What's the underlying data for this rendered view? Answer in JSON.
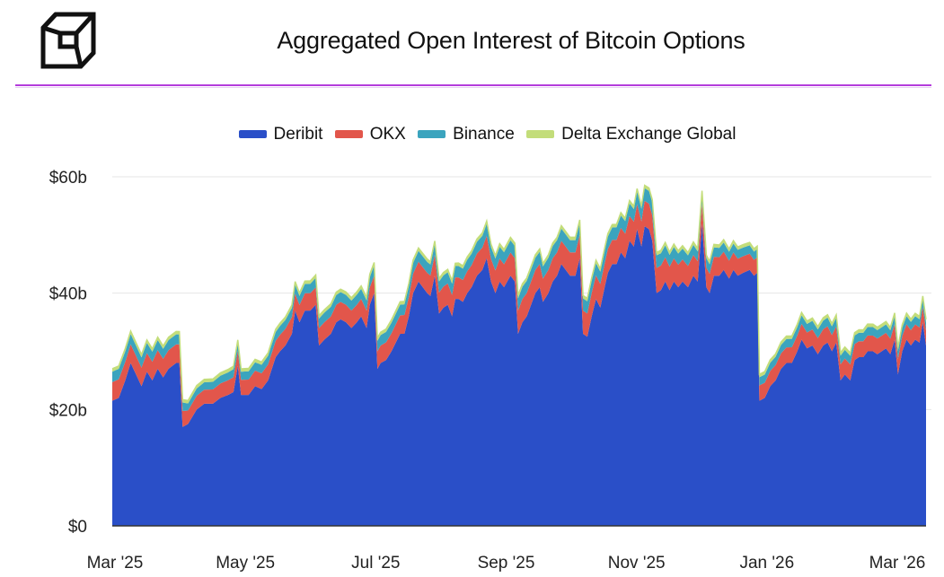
{
  "header": {
    "title": "Aggregated Open Interest of Bitcoin Options"
  },
  "logo": {
    "icon": "cube-logo-icon"
  },
  "chart_data": {
    "type": "area",
    "stacked": true,
    "title": "Aggregated Open Interest of Bitcoin Options",
    "xlabel": "",
    "ylabel": "",
    "ylim": [
      0,
      60
    ],
    "y_ticks": [
      0,
      20,
      40,
      60
    ],
    "y_tick_labels": [
      "$0",
      "$20b",
      "$40b",
      "$60b"
    ],
    "x_tick_labels": [
      "Mar '25",
      "May '25",
      "Jul '25",
      "Sep '25",
      "Nov '25",
      "Jan '26",
      "Mar '26"
    ],
    "grid": true,
    "legend_position": "top-center",
    "x_range": [
      "Mar '25",
      "Mar '26"
    ],
    "series": [
      {
        "name": "Deribit",
        "color": "#2a4fc8",
        "points": [
          [
            0,
            21.5
          ],
          [
            0.6,
            22
          ],
          [
            1.2,
            25
          ],
          [
            1.7,
            28
          ],
          [
            2.2,
            26
          ],
          [
            2.7,
            24
          ],
          [
            3.2,
            26.5
          ],
          [
            3.7,
            25
          ],
          [
            4.2,
            27
          ],
          [
            4.7,
            25.5
          ],
          [
            5.2,
            27
          ],
          [
            5.9,
            28
          ],
          [
            6.2,
            28
          ],
          [
            6.5,
            17
          ],
          [
            7,
            17.5
          ],
          [
            7.8,
            20
          ],
          [
            8.5,
            21
          ],
          [
            9.3,
            21
          ],
          [
            10,
            22
          ],
          [
            10.7,
            22.5
          ],
          [
            11.2,
            23
          ],
          [
            11.6,
            27.5
          ],
          [
            11.9,
            22.5
          ],
          [
            12.6,
            22.5
          ],
          [
            13.2,
            24
          ],
          [
            13.8,
            23.5
          ],
          [
            14.4,
            25
          ],
          [
            15.1,
            29
          ],
          [
            15.5,
            30
          ],
          [
            16,
            31
          ],
          [
            16.6,
            33
          ],
          [
            16.9,
            37
          ],
          [
            17.3,
            35
          ],
          [
            17.8,
            37
          ],
          [
            18.3,
            37
          ],
          [
            18.8,
            38
          ],
          [
            19.1,
            31
          ],
          [
            19.6,
            32
          ],
          [
            20.2,
            33
          ],
          [
            20.7,
            35
          ],
          [
            21.1,
            35.5
          ],
          [
            21.6,
            35
          ],
          [
            22.1,
            34
          ],
          [
            22.6,
            35
          ],
          [
            23,
            36
          ],
          [
            23.5,
            34
          ],
          [
            23.8,
            38
          ],
          [
            24.2,
            40
          ],
          [
            24.5,
            27
          ],
          [
            24.8,
            28
          ],
          [
            25.3,
            28.5
          ],
          [
            25.8,
            30
          ],
          [
            26.2,
            31.5
          ],
          [
            26.6,
            33
          ],
          [
            27,
            33
          ],
          [
            27.4,
            36
          ],
          [
            27.8,
            40
          ],
          [
            28.3,
            42
          ],
          [
            28.7,
            41
          ],
          [
            29.1,
            40
          ],
          [
            29.4,
            39.5
          ],
          [
            29.8,
            43
          ],
          [
            30.2,
            36.5
          ],
          [
            30.6,
            37.5
          ],
          [
            31,
            38
          ],
          [
            31.4,
            36
          ],
          [
            31.7,
            39
          ],
          [
            32,
            39
          ],
          [
            32.4,
            38.5
          ],
          [
            32.8,
            40
          ],
          [
            33.2,
            41
          ],
          [
            33.7,
            43
          ],
          [
            34.2,
            44
          ],
          [
            34.6,
            46
          ],
          [
            35,
            42
          ],
          [
            35.4,
            40
          ],
          [
            35.8,
            42
          ],
          [
            36.2,
            41
          ],
          [
            36.8,
            43
          ],
          [
            37.2,
            42
          ],
          [
            37.5,
            33
          ],
          [
            37.9,
            35
          ],
          [
            38.3,
            36
          ],
          [
            38.7,
            38
          ],
          [
            39.1,
            40
          ],
          [
            39.5,
            41
          ],
          [
            39.8,
            38.5
          ],
          [
            40.3,
            40
          ],
          [
            40.7,
            42
          ],
          [
            41.1,
            43
          ],
          [
            41.5,
            45
          ],
          [
            41.9,
            44
          ],
          [
            42.3,
            43
          ],
          [
            42.8,
            43
          ],
          [
            43.2,
            46
          ],
          [
            43.5,
            33
          ],
          [
            43.9,
            32.5
          ],
          [
            44.3,
            36
          ],
          [
            44.7,
            39
          ],
          [
            45.1,
            37.5
          ],
          [
            45.5,
            41
          ],
          [
            45.8,
            43.5
          ],
          [
            46.2,
            45
          ],
          [
            46.6,
            45
          ],
          [
            47,
            47
          ],
          [
            47.4,
            46
          ],
          [
            47.8,
            49
          ],
          [
            48.2,
            48
          ],
          [
            48.5,
            51
          ],
          [
            48.9,
            48
          ],
          [
            49.2,
            51.5
          ],
          [
            49.6,
            51
          ],
          [
            49.9,
            49
          ],
          [
            50.3,
            40
          ],
          [
            50.7,
            40.5
          ],
          [
            51.1,
            42
          ],
          [
            51.5,
            40.5
          ],
          [
            51.9,
            42
          ],
          [
            52.3,
            41
          ],
          [
            52.7,
            42
          ],
          [
            53.2,
            41
          ],
          [
            53.7,
            43
          ],
          [
            54.1,
            42
          ],
          [
            54.5,
            52
          ],
          [
            54.9,
            41
          ],
          [
            55.2,
            40
          ],
          [
            55.6,
            43
          ],
          [
            56.1,
            43
          ],
          [
            56.5,
            44
          ],
          [
            57,
            42.5
          ],
          [
            57.4,
            44
          ],
          [
            57.8,
            43
          ],
          [
            58.3,
            43.5
          ],
          [
            58.9,
            44
          ],
          [
            59.3,
            43
          ],
          [
            59.6,
            43.5
          ],
          [
            59.8,
            21.5
          ],
          [
            60.3,
            22
          ],
          [
            60.8,
            24
          ],
          [
            61.3,
            25
          ],
          [
            61.8,
            27
          ],
          [
            62.3,
            28
          ],
          [
            62.8,
            28
          ],
          [
            63.3,
            30
          ],
          [
            63.7,
            32
          ],
          [
            64.2,
            30.5
          ],
          [
            64.7,
            31
          ],
          [
            65.2,
            29.5
          ],
          [
            65.7,
            31
          ],
          [
            66.1,
            31.5
          ],
          [
            66.5,
            30
          ],
          [
            66.9,
            31.5
          ],
          [
            67.3,
            25
          ],
          [
            67.7,
            26
          ],
          [
            68.2,
            25
          ],
          [
            68.6,
            28.5
          ],
          [
            69,
            29
          ],
          [
            69.4,
            29
          ],
          [
            69.8,
            30
          ],
          [
            70.3,
            30
          ],
          [
            70.7,
            29.5
          ],
          [
            71.1,
            30
          ],
          [
            71.5,
            30.5
          ],
          [
            71.9,
            29.5
          ],
          [
            72.3,
            32
          ],
          [
            72.6,
            26
          ],
          [
            73,
            30
          ],
          [
            73.4,
            32
          ],
          [
            73.8,
            31
          ],
          [
            74.2,
            32
          ],
          [
            74.6,
            31.5
          ],
          [
            74.9,
            35
          ],
          [
            75.2,
            31
          ]
        ]
      },
      {
        "name": "OKX",
        "color": "#e2564b",
        "points": [
          [
            0,
            3.2
          ],
          [
            6.4,
            3.2
          ],
          [
            6.6,
            2.3
          ],
          [
            12,
            2.6
          ],
          [
            18,
            3
          ],
          [
            25,
            3
          ],
          [
            30,
            3.6
          ],
          [
            37,
            4
          ],
          [
            44,
            4
          ],
          [
            50,
            4.4
          ],
          [
            54,
            3.5
          ],
          [
            60,
            2.6
          ],
          [
            66,
            2.8
          ],
          [
            75.2,
            2.6
          ]
        ]
      },
      {
        "name": "Binance",
        "color": "#3ba4be",
        "points": [
          [
            0,
            1.8
          ],
          [
            6.4,
            1.7
          ],
          [
            6.6,
            1.2
          ],
          [
            12,
            1.4
          ],
          [
            18,
            1.6
          ],
          [
            25,
            1.8
          ],
          [
            30,
            1.9
          ],
          [
            37,
            2.1
          ],
          [
            44,
            2.1
          ],
          [
            50,
            2.2
          ],
          [
            54,
            1.7
          ],
          [
            60,
            1.4
          ],
          [
            66,
            1.5
          ],
          [
            75.2,
            1.4
          ]
        ]
      },
      {
        "name": "Delta Exchange Global",
        "color": "#c3dd7a",
        "points": [
          [
            0,
            0.5
          ],
          [
            75.2,
            0.5
          ]
        ]
      }
    ]
  }
}
